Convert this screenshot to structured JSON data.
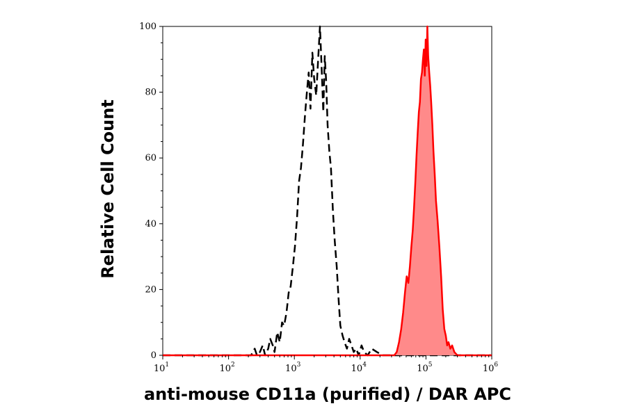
{
  "chart_data": {
    "type": "area",
    "xlabel": "anti-mouse CD11a (purified) / DAR APC",
    "ylabel": "Relative Cell Count",
    "x_scale": "log10",
    "xlim": [
      10,
      1000000
    ],
    "ylim": [
      0,
      100
    ],
    "x_ticks": [
      {
        "value": 10,
        "base": "10",
        "exp": "1"
      },
      {
        "value": 100,
        "base": "10",
        "exp": "2"
      },
      {
        "value": 1000,
        "base": "10",
        "exp": "3"
      },
      {
        "value": 10000,
        "base": "10",
        "exp": "4"
      },
      {
        "value": 100000,
        "base": "10",
        "exp": "5"
      },
      {
        "value": 1000000,
        "base": "10",
        "exp": "6"
      }
    ],
    "y_ticks": [
      "0",
      "20",
      "40",
      "60",
      "80",
      "100"
    ],
    "series": [
      {
        "style": "dashed",
        "color": "#000000",
        "x": [
          10,
          220,
          250,
          270,
          300,
          330,
          360,
          400,
          430,
          470,
          500,
          550,
          600,
          650,
          700,
          760,
          820,
          880,
          950,
          1020,
          1100,
          1180,
          1260,
          1350,
          1450,
          1550,
          1650,
          1760,
          1880,
          2000,
          2150,
          2300,
          2450,
          2600,
          2750,
          2900,
          3050,
          3200,
          3400,
          3600,
          3850,
          4100,
          4400,
          4700,
          5000,
          5400,
          5800,
          6300,
          6800,
          7400,
          8000,
          8700,
          9500,
          10500,
          11500,
          13000,
          15000,
          18000,
          22000,
          30000,
          1000000
        ],
        "y": [
          0,
          0,
          2,
          0,
          1,
          3,
          0,
          2,
          5,
          3,
          1,
          7,
          4,
          10,
          9,
          13,
          19,
          21,
          27,
          33,
          42,
          53,
          57,
          64,
          73,
          80,
          86,
          75,
          92,
          84,
          79,
          90,
          100,
          87,
          74,
          91,
          83,
          70,
          62,
          57,
          44,
          35,
          27,
          17,
          9,
          6,
          4,
          2,
          5,
          3,
          1,
          2,
          0,
          3,
          1,
          0,
          2,
          1,
          0,
          0,
          0
        ]
      },
      {
        "style": "filled",
        "color": "#ff0000",
        "fill": "#ff8a8a",
        "x": [
          10,
          30000,
          33000,
          36000,
          39000,
          42000,
          45000,
          48000,
          51000,
          54000,
          57000,
          60000,
          63000,
          66000,
          69000,
          72000,
          75000,
          78000,
          81000,
          84000,
          87000,
          90000,
          93000,
          96000,
          99000,
          102000,
          105000,
          108000,
          112000,
          116000,
          120000,
          125000,
          130000,
          136000,
          142000,
          150000,
          160000,
          170000,
          180000,
          190000,
          200000,
          210000,
          220000,
          235000,
          250000,
          270000,
          300000,
          1000000
        ],
        "y": [
          0,
          0,
          0,
          1,
          4,
          8,
          13,
          19,
          24,
          22,
          27,
          33,
          38,
          45,
          53,
          61,
          68,
          74,
          77,
          84,
          86,
          90,
          93,
          85,
          96,
          88,
          100,
          91,
          86,
          82,
          77,
          70,
          62,
          55,
          47,
          41,
          33,
          24,
          14,
          8,
          6,
          3,
          4,
          2,
          3,
          1,
          0,
          0
        ]
      }
    ]
  }
}
